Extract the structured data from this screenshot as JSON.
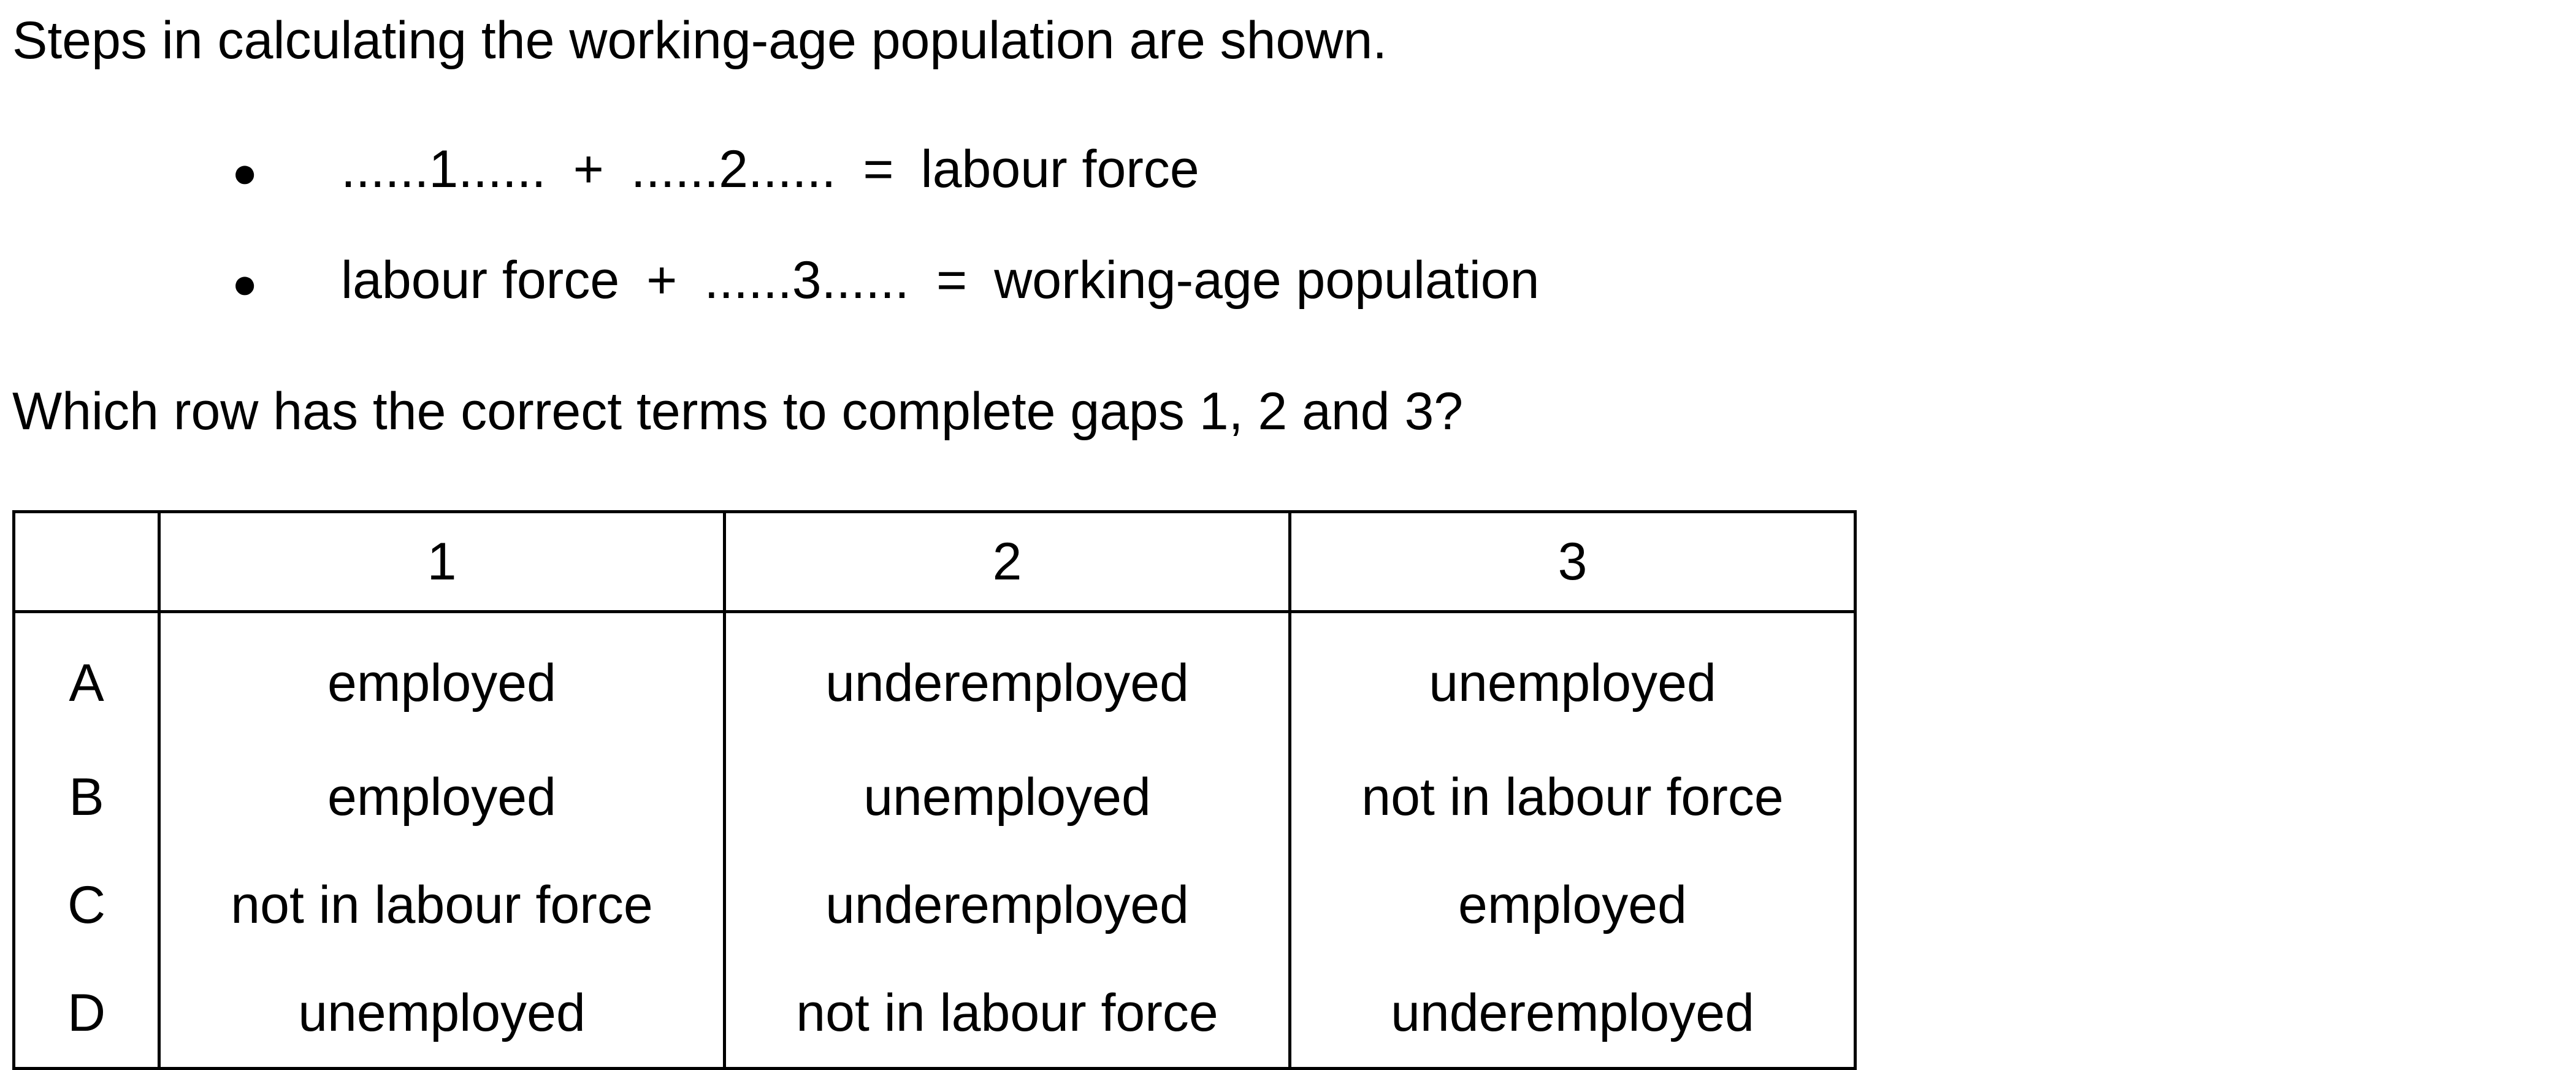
{
  "intro": "Steps in calculating the working-age population are shown.",
  "bullets": [
    {
      "symbol": "●",
      "parts": [
        "......1......",
        "+",
        "......2......",
        "=",
        "labour force"
      ]
    },
    {
      "symbol": "●",
      "parts": [
        "labour force",
        "+",
        "......3......",
        "=",
        "working-age population"
      ]
    }
  ],
  "question": "Which row has the correct terms to complete gaps 1, 2 and 3?",
  "table": {
    "headers": [
      "",
      "1",
      "2",
      "3"
    ],
    "rows": [
      {
        "key": "A",
        "cells": [
          "employed",
          "underemployed",
          "unemployed"
        ]
      },
      {
        "key": "B",
        "cells": [
          "employed",
          "unemployed",
          "not in labour force"
        ]
      },
      {
        "key": "C",
        "cells": [
          "not in labour force",
          "underemployed",
          "employed"
        ]
      },
      {
        "key": "D",
        "cells": [
          "unemployed",
          "not in labour force",
          "underemployed"
        ]
      }
    ]
  }
}
